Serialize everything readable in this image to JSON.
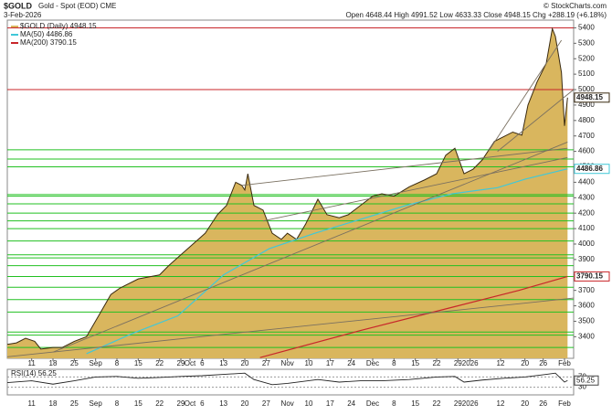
{
  "chart_data": {
    "type": "line",
    "title": "$GOLD",
    "subtitle": "Gold - Spot (EOD) CME",
    "date": "3-Feb-2026",
    "credit": "© StockCharts.com",
    "ohlc": "Open 4648.44  High 4991.52  Low 4633.33  Close 4948.15  Chg +288.19 (+6.18%)",
    "xlim": [
      2,
      188
    ],
    "xticks": [
      {
        "value": 10,
        "label": "11"
      },
      {
        "value": 17,
        "label": "18"
      },
      {
        "value": 24,
        "label": "25"
      },
      {
        "value": 31,
        "label": "Sep"
      },
      {
        "value": 38,
        "label": "8"
      },
      {
        "value": 45,
        "label": "15"
      },
      {
        "value": 52,
        "label": "22"
      },
      {
        "value": 59,
        "label": "29"
      },
      {
        "value": 62,
        "label": "Oct"
      },
      {
        "value": 66,
        "label": "6"
      },
      {
        "value": 73,
        "label": "13"
      },
      {
        "value": 80,
        "label": "20"
      },
      {
        "value": 87,
        "label": "27"
      },
      {
        "value": 94,
        "label": "Nov"
      },
      {
        "value": 101,
        "label": "10"
      },
      {
        "value": 108,
        "label": "17"
      },
      {
        "value": 115,
        "label": "24"
      },
      {
        "value": 122,
        "label": "Dec"
      },
      {
        "value": 129,
        "label": "8"
      },
      {
        "value": 136,
        "label": "15"
      },
      {
        "value": 143,
        "label": "22"
      },
      {
        "value": 150,
        "label": "29"
      },
      {
        "value": 154,
        "label": "2026"
      },
      {
        "value": 164,
        "label": "12"
      },
      {
        "value": 172,
        "label": "20"
      },
      {
        "value": 178,
        "label": "26"
      },
      {
        "value": 185,
        "label": "Feb"
      }
    ],
    "ylim": [
      3260,
      5450
    ],
    "yticks": [
      3400,
      3500,
      3600,
      3700,
      3800,
      3900,
      4000,
      4100,
      4200,
      4300,
      4400,
      4500,
      4600,
      4700,
      4800,
      4900,
      5000,
      5100,
      5200,
      5300,
      5400
    ],
    "series": [
      {
        "name": "$GOLD (Daily) 4948.15",
        "last_label": "4948.15",
        "color": "#3a2a10",
        "fill": "#d9b65e",
        "x": [
          2,
          5,
          8,
          11,
          13,
          17,
          20,
          24,
          28,
          32,
          36,
          39,
          45,
          52,
          55,
          59,
          67,
          71,
          74,
          77,
          79,
          80,
          81,
          83,
          86,
          89,
          92,
          94,
          97,
          100,
          104,
          107,
          111,
          114,
          118,
          122,
          125,
          129,
          134,
          139,
          143,
          146,
          149,
          152,
          155,
          158,
          162,
          165,
          168,
          171,
          173,
          176,
          179,
          181,
          182,
          184,
          185,
          186
        ],
        "values": [
          3350,
          3360,
          3390,
          3370,
          3320,
          3330,
          3330,
          3370,
          3400,
          3536,
          3673,
          3715,
          3774,
          3800,
          3860,
          3930,
          4070,
          4190,
          4250,
          4400,
          4380,
          4350,
          4455,
          4250,
          4220,
          4070,
          4030,
          4070,
          4030,
          4130,
          4290,
          4190,
          4170,
          4190,
          4250,
          4310,
          4325,
          4310,
          4370,
          4415,
          4455,
          4575,
          4620,
          4455,
          4485,
          4545,
          4665,
          4695,
          4725,
          4705,
          4900,
          5050,
          5170,
          5395,
          5345,
          5110,
          4765,
          4948.15
        ]
      },
      {
        "name": "MA(50) 4486.86",
        "last_label": "4486.86",
        "color": "#40c8d8",
        "x": [
          28,
          43,
          58,
          73,
          88,
          103,
          118,
          133,
          148,
          163,
          172,
          186
        ],
        "values": [
          3290,
          3420,
          3535,
          3800,
          3970,
          4070,
          4160,
          4250,
          4325,
          4365,
          4420,
          4486.86
        ]
      },
      {
        "name": "MA(200) 3790.15",
        "last_label": "3790.15",
        "color": "#c8262a",
        "x": [
          85,
          118,
          148,
          170,
          186
        ],
        "values": [
          3265,
          3440,
          3590,
          3700,
          3790.15
        ]
      }
    ],
    "levels": {
      "color": "#22c022",
      "values": [
        4610,
        4550,
        4500,
        4320,
        4310,
        4260,
        4200,
        4150,
        4100,
        4020,
        3930,
        3910,
        3860,
        3790,
        3720,
        3640,
        3560,
        3430,
        3410,
        3330
      ]
    },
    "red_levels": {
      "color": "#c8262a",
      "values": [
        5400,
        5000
      ]
    },
    "trendlines": {
      "color": "#7a7060",
      "lines": [
        [
          [
            79,
            4380
          ],
          [
            186,
            4620
          ]
        ],
        [
          [
            86,
            4150
          ],
          [
            186,
            4560
          ]
        ],
        [
          [
            2,
            3270
          ],
          [
            188,
            3650
          ]
        ],
        [
          [
            17,
            3300
          ],
          [
            186,
            4660
          ]
        ],
        [
          [
            160,
            4600
          ],
          [
            184,
            5320
          ]
        ],
        [
          [
            163,
            4600
          ],
          [
            188,
            5000
          ]
        ]
      ]
    },
    "rsi": {
      "name": "RSI(14) 56.25",
      "last_label": "56.25",
      "color": "#222",
      "fill": "#5a8a5a",
      "ylim": [
        0,
        100
      ],
      "yticks": [
        30,
        70
      ],
      "x": [
        2,
        10,
        17,
        24,
        31,
        38,
        45,
        52,
        59,
        66,
        73,
        80,
        83,
        89,
        94,
        104,
        111,
        118,
        125,
        134,
        143,
        149,
        152,
        158,
        165,
        172,
        179,
        182,
        185,
        186
      ],
      "values": [
        48,
        55,
        42,
        55,
        70,
        72,
        65,
        68,
        72,
        75,
        80,
        85,
        60,
        40,
        45,
        60,
        50,
        55,
        55,
        60,
        70,
        72,
        50,
        58,
        65,
        70,
        80,
        85,
        50,
        56.25
      ]
    }
  }
}
